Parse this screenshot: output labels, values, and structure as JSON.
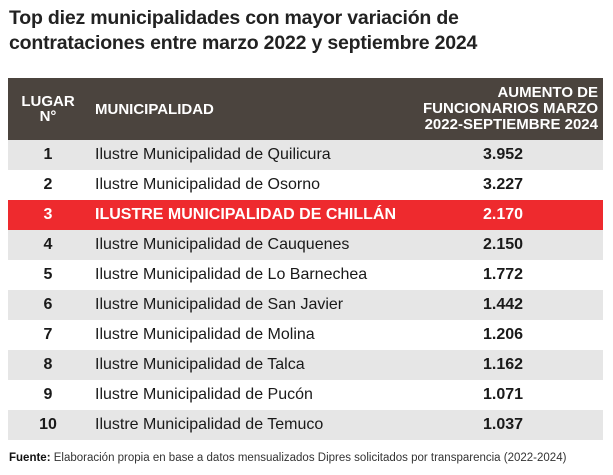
{
  "title_line1": "Top diez municipalidades con mayor variación de",
  "title_line2": "contrataciones entre marzo 2022 y septiembre 2024",
  "chart_data": {
    "type": "table",
    "title": "Top diez municipalidades con mayor variación de contrataciones entre marzo 2022 y septiembre 2024",
    "columns": {
      "rank_line1": "LUGAR",
      "rank_line2": "N°",
      "name": "MUNICIPALIDAD",
      "value_line1": "AUMENTO DE",
      "value_line2": "FUNCIONARIOS MARZO",
      "value_line3": "2022-SEPTIEMBRE 2024"
    },
    "rows": [
      {
        "rank": "1",
        "name": "Ilustre Municipalidad de Quilicura",
        "value": "3.952",
        "style": "gray"
      },
      {
        "rank": "2",
        "name": "Ilustre Municipalidad de Osorno",
        "value": "3.227",
        "style": "white"
      },
      {
        "rank": "3",
        "name": "Ilustre Municipalidad de Chillán",
        "value": "2.170",
        "style": "hl"
      },
      {
        "rank": "4",
        "name": "Ilustre Municipalidad de Cauquenes",
        "value": "2.150",
        "style": "gray"
      },
      {
        "rank": "5",
        "name": "Ilustre Municipalidad de Lo Barnechea",
        "value": "1.772",
        "style": "white"
      },
      {
        "rank": "6",
        "name": "Ilustre Municipalidad de San Javier",
        "value": "1.442",
        "style": "gray"
      },
      {
        "rank": "7",
        "name": "Ilustre Municipalidad de Molina",
        "value": "1.206",
        "style": "white"
      },
      {
        "rank": "8",
        "name": "Ilustre Municipalidad de Talca",
        "value": "1.162",
        "style": "gray"
      },
      {
        "rank": "9",
        "name": "Ilustre Municipalidad de Pucón",
        "value": "1.071",
        "style": "white"
      },
      {
        "rank": "10",
        "name": "Ilustre Municipalidad de Temuco",
        "value": "1.037",
        "style": "gray"
      }
    ],
    "highlight_color": "#ee2a2e",
    "header_color": "#4b443e"
  },
  "footer": {
    "label": "Fuente:",
    "text": " Elaboración propia en base a datos mensualizados Dipres solicitados por transparencia (2022-2024)"
  }
}
